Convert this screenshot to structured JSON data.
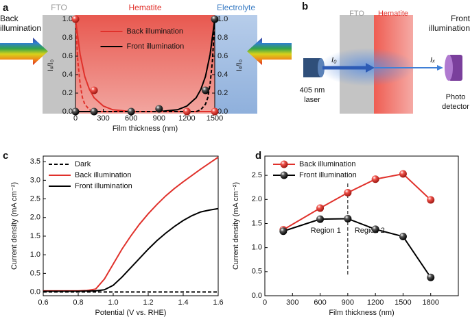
{
  "chart_data": [
    {
      "type": "line",
      "panel_label": "a",
      "regions": [
        "FTO",
        "Hematite",
        "Electrolyte"
      ],
      "side_labels": [
        [
          "Back",
          "illumination"
        ],
        [
          "Front",
          "illumination"
        ]
      ],
      "xlabel": "Film thickness (nm)",
      "ylabel": "Iₓ/I₀",
      "y2label": "Iₓ/I₀",
      "xlim": [
        0,
        1500
      ],
      "xticks": [
        0,
        300,
        600,
        900,
        1200,
        1500
      ],
      "ylim": [
        0,
        1
      ],
      "yticks": [
        {
          "value": 0,
          "label": "0.0"
        },
        {
          "value": 0.2,
          "label": "0.2"
        },
        {
          "value": 0.4,
          "label": "0.4"
        },
        {
          "value": 0.6,
          "label": "0.6"
        },
        {
          "value": 0.8,
          "label": "0.8"
        },
        {
          "value": 1,
          "label": "1.0"
        }
      ],
      "y2lim": [
        0,
        1
      ],
      "y2ticks": [
        {
          "value": 0,
          "label": "0.0"
        },
        {
          "value": 0.2,
          "label": "0.2"
        },
        {
          "value": 0.4,
          "label": "0.4"
        },
        {
          "value": 0.6,
          "label": "0.6"
        },
        {
          "value": 0.8,
          "label": "0.8"
        },
        {
          "value": 1,
          "label": "1.0"
        }
      ],
      "legend": "upper center",
      "series": [
        {
          "name": "Back illumination",
          "color": "#e0312b",
          "mode": "lines",
          "x": [
            0,
            50,
            100,
            150,
            200,
            300,
            400,
            500,
            600,
            900,
            1500
          ],
          "values": [
            1,
            0.62,
            0.38,
            0.24,
            0.15,
            0.06,
            0.02,
            0.01,
            0,
            0,
            0
          ]
        },
        {
          "name": "Front illumination",
          "color": "#000000",
          "mode": "lines",
          "x": [
            0,
            600,
            900,
            1000,
            1100,
            1200,
            1300,
            1350,
            1400,
            1450,
            1500
          ],
          "values": [
            0,
            0,
            0,
            0.01,
            0.02,
            0.06,
            0.15,
            0.24,
            0.38,
            0.62,
            1
          ]
        },
        {
          "color": "#e0312b",
          "mode": "lines",
          "dash": true,
          "x": [
            0,
            25,
            50,
            75,
            100,
            150,
            200,
            300,
            1500
          ],
          "values": [
            1,
            0.55,
            0.3,
            0.15,
            0.08,
            0.02,
            0,
            0,
            0
          ]
        },
        {
          "color": "#000000",
          "mode": "lines",
          "dash": true,
          "x": [
            0,
            1200,
            1300,
            1350,
            1400,
            1425,
            1450,
            1475,
            1500
          ],
          "values": [
            0,
            0,
            0,
            0.02,
            0.08,
            0.15,
            0.3,
            0.55,
            1
          ]
        },
        {
          "color": "#e0312b",
          "mode": "markers",
          "x": [
            0,
            200,
            1200,
            1500
          ],
          "values": [
            1,
            0.23,
            0,
            0
          ]
        },
        {
          "color": "#000000",
          "mode": "markers",
          "x": [
            0,
            200,
            600,
            900,
            1400,
            1500
          ],
          "values": [
            0,
            0,
            0,
            0.03,
            0.23,
            1
          ]
        }
      ]
    },
    {
      "type": "line",
      "panel_label": "c",
      "xlabel": "Potential (V vs. RHE)",
      "ylabel": "Current density (mA cm⁻²)",
      "xlim": [
        0.6,
        1.6
      ],
      "xticks": [
        0.6,
        0.8,
        {
          "value": 1,
          "label": "1.0"
        },
        1.2,
        1.4,
        1.6
      ],
      "ylim": [
        -0.1,
        3.65
      ],
      "yticks": [
        {
          "value": 0,
          "label": "0.0"
        },
        0.5,
        {
          "value": 1,
          "label": "1.0"
        },
        1.5,
        {
          "value": 2,
          "label": "2.0"
        },
        2.5,
        {
          "value": 3,
          "label": "3.0"
        },
        3.5
      ],
      "legend": "upper left",
      "series": [
        {
          "name": "Dark",
          "color": "#000000",
          "mode": "lines",
          "dash": true,
          "x": [
            0.6,
            1.6
          ],
          "values": [
            0,
            0
          ]
        },
        {
          "name": "Back illumination",
          "color": "#e0312b",
          "mode": "lines",
          "x": [
            0.6,
            0.8,
            0.85,
            0.9,
            0.95,
            1.0,
            1.05,
            1.1,
            1.15,
            1.2,
            1.25,
            1.3,
            1.35,
            1.4,
            1.45,
            1.5,
            1.55,
            1.6
          ],
          "values": [
            0.03,
            0.03,
            0.04,
            0.08,
            0.35,
            0.75,
            1.15,
            1.5,
            1.82,
            2.1,
            2.35,
            2.58,
            2.78,
            2.96,
            3.13,
            3.3,
            3.46,
            3.62
          ]
        },
        {
          "name": "Front illumination",
          "color": "#000000",
          "mode": "lines",
          "x": [
            0.6,
            0.8,
            0.9,
            0.95,
            1.0,
            1.05,
            1.1,
            1.15,
            1.2,
            1.25,
            1.3,
            1.35,
            1.4,
            1.45,
            1.5,
            1.55,
            1.6
          ],
          "values": [
            0.02,
            0.02,
            0.03,
            0.06,
            0.18,
            0.4,
            0.65,
            0.9,
            1.15,
            1.38,
            1.58,
            1.76,
            1.92,
            2.05,
            2.15,
            2.2,
            2.24
          ]
        }
      ]
    },
    {
      "type": "line",
      "panel_label": "d",
      "xlabel": "Film thickness (nm)",
      "ylabel": "Current density (mA cm⁻²)",
      "xlim": [
        0,
        2100
      ],
      "xticks": [
        0,
        300,
        600,
        900,
        1200,
        1500,
        1800
      ],
      "ylim": [
        0,
        2.9
      ],
      "yticks": [
        {
          "value": 0,
          "label": "0.0"
        },
        0.5,
        {
          "value": 1,
          "label": "1.0"
        },
        1.5,
        {
          "value": 2,
          "label": "2.0"
        },
        2.5
      ],
      "legend": "upper left",
      "divider": 900,
      "region_labels": [
        "Region 1",
        "Region 2"
      ],
      "series": [
        {
          "name": "Back illumination",
          "color": "#e0312b",
          "mode": "lines+markers",
          "x": [
            200,
            600,
            900,
            1200,
            1500,
            1800
          ],
          "values": [
            1.37,
            1.82,
            2.14,
            2.42,
            2.53,
            1.99
          ]
        },
        {
          "name": "Front illumination",
          "color": "#000000",
          "mode": "lines+markers",
          "x": [
            200,
            600,
            900,
            1200,
            1500,
            1800
          ],
          "values": [
            1.34,
            1.59,
            1.6,
            1.38,
            1.23,
            0.38
          ]
        }
      ]
    }
  ],
  "diagram": {
    "panel_label": "b",
    "layers": [
      "FTO",
      "Hematite"
    ],
    "beam_in": "I₀",
    "beam_out": "Iₓ",
    "source": [
      "405 nm",
      "laser"
    ],
    "detector": [
      "Photo",
      "detector"
    ]
  }
}
